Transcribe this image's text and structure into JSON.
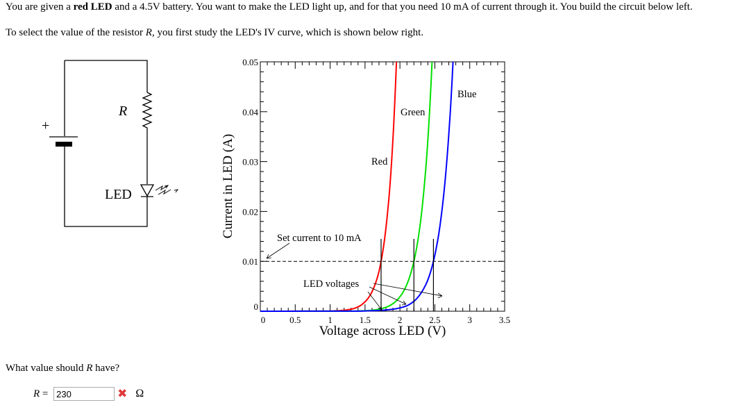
{
  "intro": {
    "line1_a": "You are given a ",
    "line1_bold": "red LED",
    "line1_b": " and a 4.5V battery. You want to make the LED light up, and for that you need 10 mA of current through it. You build the circuit below left.",
    "line2_a": "To select the value of the resistor ",
    "line2_var": "R",
    "line2_b": ", you first study the LED's IV curve, which is shown below right."
  },
  "circuit": {
    "resistor_label": "R",
    "led_label": "LED",
    "plus_sign": "+"
  },
  "chart_data": {
    "type": "line",
    "xlabel": "Voltage across LED (V)",
    "ylabel": "Current in LED (A)",
    "xlim": [
      0,
      3.5
    ],
    "ylim": [
      0,
      0.05
    ],
    "xticks": [
      "0",
      "0.5",
      "1",
      "1.5",
      "2",
      "2.5",
      "3",
      "3.5"
    ],
    "yticks": [
      "0",
      "0.01",
      "0.02",
      "0.03",
      "0.04",
      "0.05"
    ],
    "grid": false,
    "series": [
      {
        "name": "Red",
        "color": "#ff0000",
        "x": [
          0,
          1.1,
          1.3,
          1.5,
          1.6,
          1.7,
          1.73,
          1.8,
          1.9,
          1.95
        ],
        "y": [
          0,
          0.0001,
          0.0004,
          0.0019,
          0.0039,
          0.008,
          0.01,
          0.0167,
          0.0346,
          0.05
        ]
      },
      {
        "name": "Green",
        "color": "#00e000",
        "x": [
          0,
          1.5,
          1.8,
          2.0,
          2.1,
          2.2,
          2.3,
          2.4,
          2.46
        ],
        "y": [
          0,
          0.0001,
          0.0008,
          0.0029,
          0.0054,
          0.01,
          0.0185,
          0.0344,
          0.05
        ]
      },
      {
        "name": "Blue",
        "color": "#0000ff",
        "x": [
          0,
          1.6,
          1.9,
          2.1,
          2.3,
          2.4,
          2.48,
          2.6,
          2.7,
          2.76
        ],
        "y": [
          0,
          0.0001,
          0.0004,
          0.0011,
          0.0036,
          0.0063,
          0.01,
          0.02,
          0.0354,
          0.05
        ]
      }
    ],
    "reference_line": {
      "y": 0.01,
      "style": "dashed"
    },
    "led_voltages": [
      1.73,
      2.2,
      2.48
    ],
    "annotations": {
      "set_current": "Set current to 10 mA",
      "led_voltages": "LED voltages"
    }
  },
  "question": {
    "text_a": "What value should ",
    "var": "R",
    "text_b": " have?",
    "answer_label_var": "R",
    "answer_label_eq": " = ",
    "answer_value": "230",
    "status": "incorrect",
    "status_icon": "✖",
    "unit": "Ω"
  }
}
